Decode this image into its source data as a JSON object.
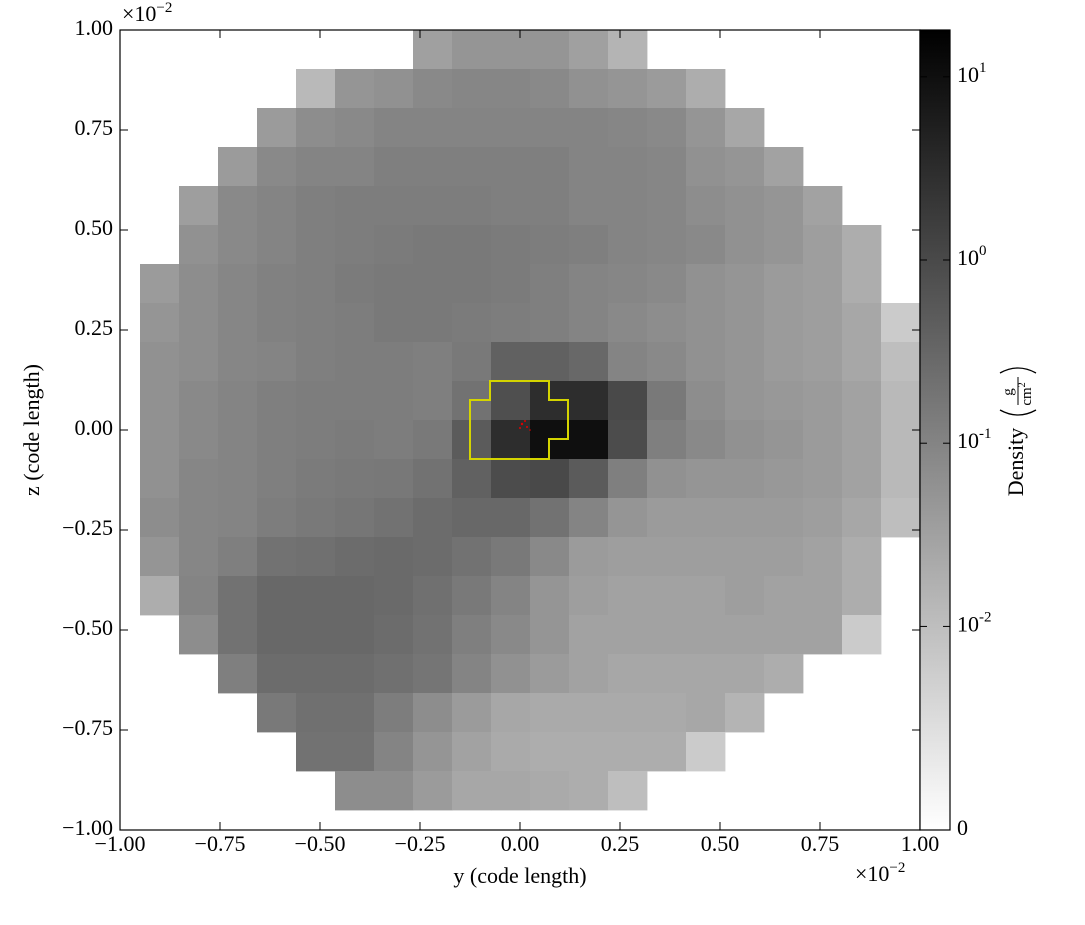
{
  "chart_data": {
    "type": "heatmap",
    "xlabel": "y  (code length)",
    "ylabel": "z  (code length)",
    "x_offset": {
      "base": "×10",
      "exponent": "−2"
    },
    "y_offset": {
      "base": "×10",
      "exponent": "−2"
    },
    "xlim": [
      -1,
      1
    ],
    "ylim": [
      -1,
      1
    ],
    "xticks": [
      {
        "value": -1,
        "label": "−1.00"
      },
      {
        "value": -0.75,
        "label": "−0.75"
      },
      {
        "value": -0.5,
        "label": "−0.50"
      },
      {
        "value": -0.25,
        "label": "−0.25"
      },
      {
        "value": 0,
        "label": "0.00"
      },
      {
        "value": 0.25,
        "label": "0.25"
      },
      {
        "value": 0.5,
        "label": "0.50"
      },
      {
        "value": 0.75,
        "label": "0.75"
      },
      {
        "value": 1,
        "label": "1.00"
      }
    ],
    "yticks": [
      {
        "value": -1,
        "label": "−1.00"
      },
      {
        "value": -0.75,
        "label": "−0.75"
      },
      {
        "value": -0.5,
        "label": "−0.50"
      },
      {
        "value": -0.25,
        "label": "−0.25"
      },
      {
        "value": 0,
        "label": "0.00"
      },
      {
        "value": 0.25,
        "label": "0.25"
      },
      {
        "value": 0.5,
        "label": "0.50"
      },
      {
        "value": 0.75,
        "label": "0.75"
      },
      {
        "value": 1,
        "label": "1.00"
      }
    ],
    "x_edges": [
      -0.95,
      -0.8525,
      -0.755,
      -0.6575,
      -0.56,
      -0.4625,
      -0.365,
      -0.2675,
      -0.17,
      -0.0725,
      0.025,
      0.1225,
      0.22,
      0.3175,
      0.415,
      0.5125,
      0.61,
      0.7075,
      0.805,
      0.9025,
      1.0
    ],
    "y_edges": [
      1.0,
      0.9025,
      0.805,
      0.7075,
      0.61,
      0.5125,
      0.415,
      0.3175,
      0.22,
      0.1225,
      0.025,
      -0.0725,
      -0.17,
      -0.2675,
      -0.365,
      -0.4625,
      -0.56,
      -0.6575,
      -0.755,
      -0.8525,
      -0.95
    ],
    "z": [
      [
        null,
        null,
        null,
        null,
        null,
        null,
        null,
        0.033,
        0.05,
        0.05,
        0.05,
        0.033,
        0.015,
        null,
        null,
        null,
        null,
        null,
        null,
        null
      ],
      [
        null,
        null,
        null,
        null,
        0.012,
        0.05,
        0.06,
        0.08,
        0.09,
        0.09,
        0.08,
        0.06,
        0.05,
        0.04,
        0.02,
        null,
        null,
        null,
        null,
        null
      ],
      [
        null,
        null,
        null,
        0.04,
        0.07,
        0.08,
        0.1,
        0.1,
        0.1,
        0.1,
        0.1,
        0.1,
        0.09,
        0.08,
        0.05,
        0.025,
        null,
        null,
        null,
        null
      ],
      [
        null,
        null,
        0.04,
        0.08,
        0.1,
        0.1,
        0.12,
        0.12,
        0.12,
        0.12,
        0.12,
        0.1,
        0.1,
        0.09,
        0.06,
        0.05,
        0.03,
        null,
        null,
        null
      ],
      [
        null,
        0.035,
        0.08,
        0.1,
        0.12,
        0.13,
        0.13,
        0.13,
        0.13,
        0.12,
        0.12,
        0.1,
        0.1,
        0.09,
        0.07,
        0.06,
        0.05,
        0.03,
        null,
        null
      ],
      [
        null,
        0.06,
        0.08,
        0.1,
        0.12,
        0.13,
        0.14,
        0.15,
        0.15,
        0.14,
        0.13,
        0.12,
        0.1,
        0.09,
        0.08,
        0.06,
        0.05,
        0.035,
        0.02,
        null
      ],
      [
        0.04,
        0.07,
        0.09,
        0.11,
        0.12,
        0.14,
        0.15,
        0.15,
        0.15,
        0.14,
        0.12,
        0.1,
        0.09,
        0.08,
        0.06,
        0.05,
        0.04,
        0.035,
        0.02,
        null
      ],
      [
        0.05,
        0.07,
        0.09,
        0.11,
        0.12,
        0.13,
        0.15,
        0.15,
        0.14,
        0.13,
        0.12,
        0.1,
        0.08,
        0.07,
        0.06,
        0.05,
        0.04,
        0.035,
        0.025,
        0.008
      ],
      [
        0.06,
        0.07,
        0.09,
        0.1,
        0.12,
        0.13,
        0.13,
        0.12,
        0.15,
        0.4,
        0.4,
        0.3,
        0.1,
        0.08,
        0.06,
        0.05,
        0.04,
        0.035,
        0.025,
        0.01
      ],
      [
        0.06,
        0.08,
        0.1,
        0.12,
        0.13,
        0.13,
        0.13,
        0.12,
        0.2,
        0.8,
        3,
        3,
        1,
        0.15,
        0.07,
        0.05,
        0.045,
        0.04,
        0.03,
        0.012
      ],
      [
        0.06,
        0.08,
        0.1,
        0.12,
        0.13,
        0.14,
        0.13,
        0.15,
        0.5,
        3,
        10,
        10,
        0.9,
        0.12,
        0.08,
        0.06,
        0.05,
        0.04,
        0.03,
        0.012
      ],
      [
        0.06,
        0.09,
        0.1,
        0.12,
        0.14,
        0.15,
        0.16,
        0.2,
        0.4,
        0.9,
        1,
        0.5,
        0.12,
        0.06,
        0.05,
        0.05,
        0.045,
        0.04,
        0.03,
        0.012
      ],
      [
        0.07,
        0.09,
        0.1,
        0.13,
        0.15,
        0.17,
        0.2,
        0.25,
        0.3,
        0.3,
        0.2,
        0.1,
        0.05,
        0.04,
        0.04,
        0.04,
        0.04,
        0.035,
        0.025,
        0.01
      ],
      [
        0.05,
        0.09,
        0.12,
        0.2,
        0.22,
        0.25,
        0.28,
        0.25,
        0.2,
        0.15,
        0.08,
        0.04,
        0.035,
        0.035,
        0.035,
        0.035,
        0.035,
        0.03,
        0.02,
        null
      ],
      [
        0.02,
        0.1,
        0.2,
        0.3,
        0.3,
        0.3,
        0.28,
        0.22,
        0.15,
        0.1,
        0.05,
        0.035,
        0.03,
        0.03,
        0.03,
        0.035,
        0.03,
        0.03,
        0.02,
        null
      ],
      [
        null,
        0.07,
        0.2,
        0.3,
        0.3,
        0.3,
        0.25,
        0.2,
        0.12,
        0.08,
        0.05,
        0.03,
        0.03,
        0.03,
        0.03,
        0.03,
        0.03,
        0.03,
        0.008,
        null
      ],
      [
        null,
        null,
        0.12,
        0.25,
        0.25,
        0.25,
        0.22,
        0.18,
        0.1,
        0.06,
        0.04,
        0.03,
        0.025,
        0.025,
        0.025,
        0.025,
        0.02,
        null,
        null,
        null
      ],
      [
        null,
        null,
        null,
        0.15,
        0.22,
        0.22,
        0.13,
        0.07,
        0.04,
        0.025,
        0.022,
        0.022,
        0.022,
        0.022,
        0.025,
        0.015,
        null,
        null,
        null,
        null
      ],
      [
        null,
        null,
        null,
        null,
        0.2,
        0.2,
        0.1,
        0.05,
        0.03,
        0.022,
        0.02,
        0.02,
        0.02,
        0.02,
        0.008,
        null,
        null,
        null,
        null,
        null
      ],
      [
        null,
        null,
        null,
        null,
        null,
        0.07,
        0.07,
        0.04,
        0.025,
        0.025,
        0.022,
        0.02,
        0.01,
        null,
        null,
        null,
        null,
        null,
        null,
        null
      ]
    ],
    "colorbar": {
      "label": "Density",
      "unit_numerator": "g",
      "unit_denominator": "cm",
      "unit_exponent": "2",
      "scale": "symlog",
      "linthresh": 0.01,
      "clim": [
        0,
        18
      ],
      "ticks": [
        0,
        {
          "value": 0.01,
          "label": "10",
          "exponent": "-2"
        },
        {
          "value": 0.1,
          "label": "10",
          "exponent": "-1"
        },
        {
          "value": 1,
          "label": "10",
          "exponent": "0"
        },
        {
          "value": 10,
          "label": "10",
          "exponent": "1"
        }
      ]
    }
  }
}
